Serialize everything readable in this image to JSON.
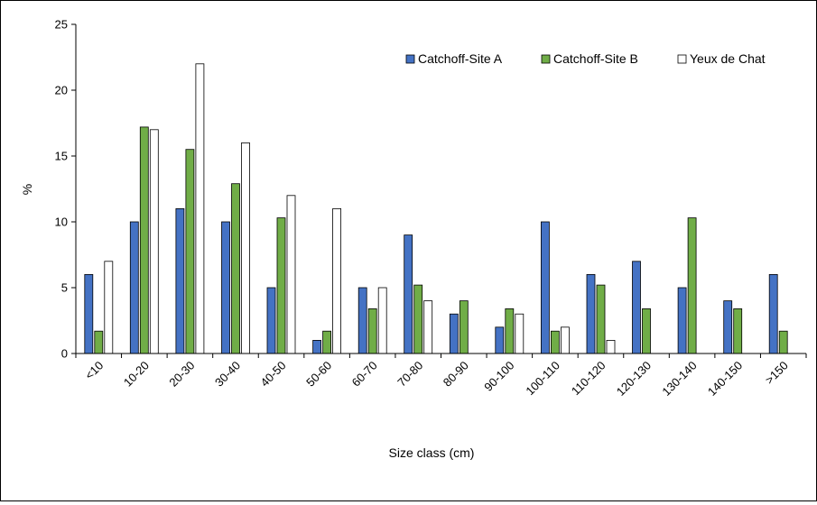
{
  "chart_data": {
    "type": "bar",
    "title": "",
    "xlabel": "Size class (cm)",
    "ylabel": "%",
    "ylim": [
      0,
      25
    ],
    "yticks": [
      0,
      5,
      10,
      15,
      20,
      25
    ],
    "grid": false,
    "legend_position": "top-right",
    "categories": [
      "<10",
      "10-20",
      "20-30",
      "30-40",
      "40-50",
      "50-60",
      "60-70",
      "70-80",
      "80-90",
      "90-100",
      "100-110",
      "110-120",
      "120-130",
      "130-140",
      "140-150",
      ">150"
    ],
    "series": [
      {
        "name": "Catchoff-Site A",
        "color": "#4472c4",
        "values": [
          6,
          10,
          11,
          10,
          5,
          1,
          5,
          9,
          3,
          2,
          10,
          6,
          7,
          5,
          4,
          6
        ]
      },
      {
        "name": "Catchoff-Site B",
        "color": "#70ad47",
        "values": [
          1.7,
          17.2,
          15.5,
          12.9,
          10.3,
          1.7,
          3.4,
          5.2,
          4.0,
          3.4,
          1.7,
          5.2,
          3.4,
          10.3,
          3.4,
          1.7
        ]
      },
      {
        "name": "Yeux de Chat",
        "color": "#ffffff",
        "values": [
          7,
          17,
          22,
          16,
          12,
          11,
          5,
          4,
          0,
          3,
          2,
          1,
          0,
          0,
          0,
          0
        ]
      }
    ]
  }
}
